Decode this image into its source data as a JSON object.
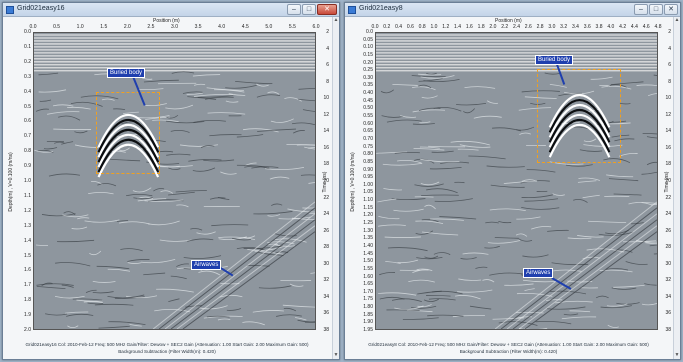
{
  "windows": [
    {
      "title": "Grid021easy16",
      "position_title": "Position (m)",
      "x_ticks": [
        "0.0",
        "0.5",
        "1.0",
        "1.5",
        "2.0",
        "2.5",
        "3.0",
        "3.5",
        "4.0",
        "4.5",
        "5.0",
        "5.5",
        "6.0"
      ],
      "y_left_title": "Depth(m) , V=0.100 (m/ns)",
      "y_left_ticks": [
        "0.0",
        "0.1",
        "0.2",
        "0.3",
        "0.4",
        "0.5",
        "0.6",
        "0.7",
        "0.8",
        "0.9",
        "1.0",
        "1.1",
        "1.2",
        "1.3",
        "1.4",
        "1.5",
        "1.6",
        "1.7",
        "1.8",
        "1.9",
        "2.0"
      ],
      "y_right_title": "Time (ns)",
      "y_right_ticks": [
        "2",
        "4",
        "6",
        "8",
        "10",
        "12",
        "14",
        "16",
        "18",
        "20",
        "22",
        "24",
        "26",
        "28",
        "30",
        "32",
        "34",
        "36",
        "38"
      ],
      "buried_label": "Buried body",
      "airwaves_label": "Airwaves",
      "footer_line1": "Grid021easy16  Col: 2010-Feb-12  Freq: 500 MHz  Gain/Filter: Dewow + SEC2 Gain (Attenuation: 1.00 Start Gain: 2.00 Maximum Gain: 500)",
      "footer_line2": "Background Subtraction (Filter Width(m): 0.420)"
    },
    {
      "title": "Grid021easy8",
      "position_title": "Position (m)",
      "x_ticks": [
        "0.0",
        "0.2",
        "0.4",
        "0.6",
        "0.8",
        "1.0",
        "1.2",
        "1.4",
        "1.6",
        "1.8",
        "2.0",
        "2.2",
        "2.4",
        "2.6",
        "2.8",
        "3.0",
        "3.2",
        "3.4",
        "3.6",
        "3.8",
        "4.0",
        "4.2",
        "4.4",
        "4.6",
        "4.8"
      ],
      "y_left_title": "Depth(m) , V=0.100 (m/ns)",
      "y_left_ticks": [
        "0.0",
        "0.05",
        "0.10",
        "0.15",
        "0.20",
        "0.25",
        "0.30",
        "0.35",
        "0.40",
        "0.45",
        "0.50",
        "0.55",
        "0.60",
        "0.65",
        "0.70",
        "0.75",
        "0.80",
        "0.85",
        "0.90",
        "0.95",
        "1.00",
        "1.05",
        "1.10",
        "1.15",
        "1.20",
        "1.25",
        "1.30",
        "1.35",
        "1.40",
        "1.45",
        "1.50",
        "1.55",
        "1.60",
        "1.65",
        "1.70",
        "1.75",
        "1.80",
        "1.85",
        "1.90",
        "1.95"
      ],
      "y_right_title": "Time (ns)",
      "y_right_ticks": [
        "2",
        "4",
        "6",
        "8",
        "10",
        "12",
        "14",
        "16",
        "18",
        "20",
        "22",
        "24",
        "26",
        "28",
        "30",
        "32",
        "34",
        "36",
        "38"
      ],
      "buried_label": "Buried body",
      "airwaves_label": "Airwaves",
      "footer_line1": "Grid021easy8  Col: 2010-Feb-12  Freq: 500 MHz  Gain/Filter: Dewow + SEC2 Gain (Attenuation: 1.00 Start Gain: 2.00 Maximum Gain: 500)",
      "footer_line2": "Background Subtraction (Filter Width(m): 0.420)"
    }
  ],
  "window_controls": {
    "minimize": "–",
    "maximize": "□",
    "close": "✕"
  },
  "icons": {
    "app": "gpr-app-icon",
    "scroll_up": "▲",
    "scroll_down": "▼"
  }
}
